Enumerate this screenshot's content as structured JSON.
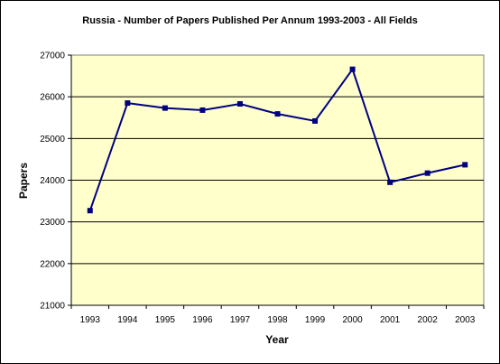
{
  "chart_data": {
    "type": "line",
    "title": "Russia - Number of Papers Published Per Annum 1993-2003 - All Fields",
    "xlabel": "Year",
    "ylabel": "Papers",
    "x": [
      "1993",
      "1994",
      "1995",
      "1996",
      "1997",
      "1998",
      "1999",
      "2000",
      "2001",
      "2002",
      "2003"
    ],
    "series": [
      {
        "name": "",
        "values": [
          23270,
          25850,
          25730,
          25680,
          25830,
          25590,
          25420,
          26660,
          23950,
          24170,
          24370
        ]
      }
    ],
    "ylim": [
      21000,
      27000
    ],
    "yticks": [
      21000,
      22000,
      23000,
      24000,
      25000,
      26000,
      27000
    ],
    "grid": true,
    "legend": "none",
    "colors": {
      "plot_background": "#FFFFCC",
      "line": "#000080",
      "marker": "#000080",
      "gridline": "#000000"
    }
  }
}
